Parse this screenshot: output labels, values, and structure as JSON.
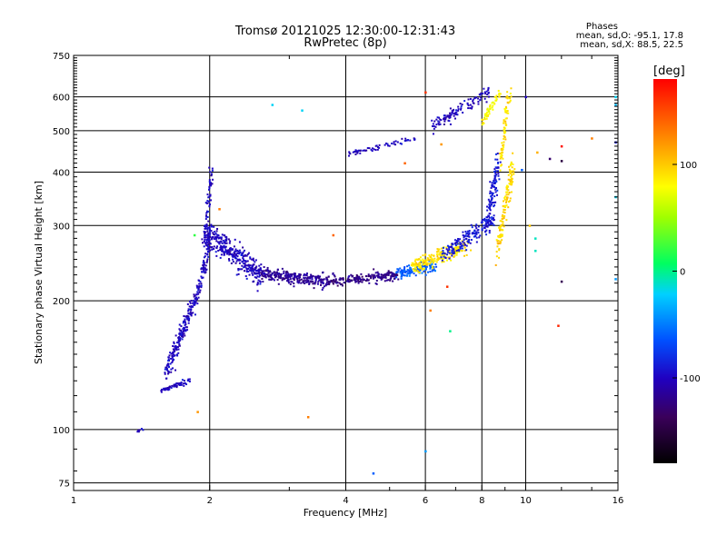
{
  "chart_data": {
    "type": "scatter",
    "title": "Tromsø 20121025 12:30:00-12:31:43",
    "subtitle": "RwPretec (8p)",
    "xlabel": "Frequency [MHz]",
    "ylabel": "Stationary phase Virtual Height [km]",
    "xscale": "log",
    "yscale": "log",
    "xlim": [
      1,
      16
    ],
    "ylim": [
      72,
      750
    ],
    "xticks": [
      1,
      2,
      4,
      6,
      8,
      10,
      16
    ],
    "yticks": [
      75,
      100,
      200,
      300,
      400,
      500,
      600,
      750
    ],
    "grid": true,
    "colorbar": {
      "label": "[deg]",
      "range": [
        -180,
        180
      ],
      "ticks": [
        -100,
        0,
        100
      ],
      "colormap": "rainbow (black-purple-blue-cyan-green-yellow-orange-red)"
    },
    "annotation": {
      "title": "Phases",
      "line_o": "mean, sd,O: -95.1, 17.8",
      "line_x": "mean, sd,X:  88.5, 22.5"
    },
    "segments": [
      {
        "x0": 1.38,
        "x1": 1.42,
        "y0": 98,
        "y1": 101,
        "n": 6,
        "spread": 0.02,
        "phase": -100
      },
      {
        "x0": 1.55,
        "x1": 1.8,
        "y0": 123,
        "y1": 130,
        "n": 60,
        "spread": 0.02,
        "phase": -100
      },
      {
        "x0": 1.6,
        "x1": 1.85,
        "y0": 135,
        "y1": 200,
        "n": 180,
        "spread": 0.09,
        "phase": -100
      },
      {
        "x0": 1.85,
        "x1": 2.0,
        "y0": 195,
        "y1": 270,
        "n": 90,
        "spread": 0.05,
        "phase": -100
      },
      {
        "x0": 1.95,
        "x1": 2.02,
        "y0": 270,
        "y1": 410,
        "n": 70,
        "spread": 0.05,
        "phase": -100
      },
      {
        "x0": 1.95,
        "x1": 2.6,
        "y0": 290,
        "y1": 230,
        "n": 320,
        "spread": 0.12,
        "phase": -100
      },
      {
        "x0": 2.6,
        "x1": 3.6,
        "y0": 232,
        "y1": 222,
        "n": 240,
        "spread": 0.06,
        "phase": -115
      },
      {
        "x0": 3.6,
        "x1": 5.2,
        "y0": 222,
        "y1": 230,
        "n": 200,
        "spread": 0.05,
        "phase": -120
      },
      {
        "x0": 5.2,
        "x1": 6.3,
        "y0": 232,
        "y1": 242,
        "n": 140,
        "spread": 0.06,
        "phase": -60
      },
      {
        "x0": 5.6,
        "x1": 7.5,
        "y0": 240,
        "y1": 270,
        "n": 200,
        "spread": 0.07,
        "phase": 90
      },
      {
        "x0": 6.5,
        "x1": 8.5,
        "y0": 255,
        "y1": 310,
        "n": 160,
        "spread": 0.08,
        "phase": -90
      },
      {
        "x0": 8.2,
        "x1": 8.7,
        "y0": 300,
        "y1": 420,
        "n": 120,
        "spread": 0.14,
        "phase": -90
      },
      {
        "x0": 8.6,
        "x1": 9.4,
        "y0": 260,
        "y1": 420,
        "n": 140,
        "spread": 0.12,
        "phase": 95
      },
      {
        "x0": 8.8,
        "x1": 9.2,
        "y0": 420,
        "y1": 620,
        "n": 70,
        "spread": 0.08,
        "phase": 90
      },
      {
        "x0": 4.0,
        "x1": 5.7,
        "y0": 440,
        "y1": 480,
        "n": 60,
        "spread": 0.03,
        "phase": -100
      },
      {
        "x0": 6.2,
        "x1": 8.3,
        "y0": 510,
        "y1": 620,
        "n": 110,
        "spread": 0.06,
        "phase": -100
      },
      {
        "x0": 8.0,
        "x1": 8.8,
        "y0": 520,
        "y1": 620,
        "n": 50,
        "spread": 0.05,
        "phase": 80
      }
    ],
    "isolated_points": [
      {
        "x": 2.75,
        "y": 575,
        "phase": -20
      },
      {
        "x": 3.2,
        "y": 558,
        "phase": -20
      },
      {
        "x": 1.88,
        "y": 110,
        "phase": 120
      },
      {
        "x": 3.3,
        "y": 107,
        "phase": 130
      },
      {
        "x": 4.6,
        "y": 79,
        "phase": -60
      },
      {
        "x": 6.0,
        "y": 89,
        "phase": -40
      },
      {
        "x": 6.0,
        "y": 615,
        "phase": 160
      },
      {
        "x": 6.8,
        "y": 170,
        "phase": 0
      },
      {
        "x": 6.7,
        "y": 216,
        "phase": 160
      },
      {
        "x": 6.15,
        "y": 190,
        "phase": 130
      },
      {
        "x": 3.75,
        "y": 285,
        "phase": 140
      },
      {
        "x": 5.4,
        "y": 420,
        "phase": 140
      },
      {
        "x": 10.2,
        "y": 300,
        "phase": 100
      },
      {
        "x": 10.5,
        "y": 280,
        "phase": -10
      },
      {
        "x": 10.5,
        "y": 262,
        "phase": -10
      },
      {
        "x": 10.6,
        "y": 445,
        "phase": 110
      },
      {
        "x": 12.0,
        "y": 460,
        "phase": 175
      },
      {
        "x": 12.0,
        "y": 425,
        "phase": -150
      },
      {
        "x": 11.3,
        "y": 430,
        "phase": -130
      },
      {
        "x": 14.0,
        "y": 480,
        "phase": 130
      },
      {
        "x": 12.0,
        "y": 222,
        "phase": -140
      },
      {
        "x": 11.8,
        "y": 175,
        "phase": 165
      },
      {
        "x": 15.8,
        "y": 600,
        "phase": -20
      },
      {
        "x": 15.8,
        "y": 575,
        "phase": -30
      },
      {
        "x": 15.8,
        "y": 470,
        "phase": -90
      },
      {
        "x": 15.8,
        "y": 350,
        "phase": -20
      },
      {
        "x": 15.8,
        "y": 225,
        "phase": -40
      },
      {
        "x": 10.0,
        "y": 600,
        "phase": -100
      },
      {
        "x": 9.8,
        "y": 405,
        "phase": -60
      },
      {
        "x": 2.1,
        "y": 328,
        "phase": 130
      },
      {
        "x": 1.85,
        "y": 285,
        "phase": 20
      },
      {
        "x": 6.5,
        "y": 465,
        "phase": 120
      }
    ]
  }
}
